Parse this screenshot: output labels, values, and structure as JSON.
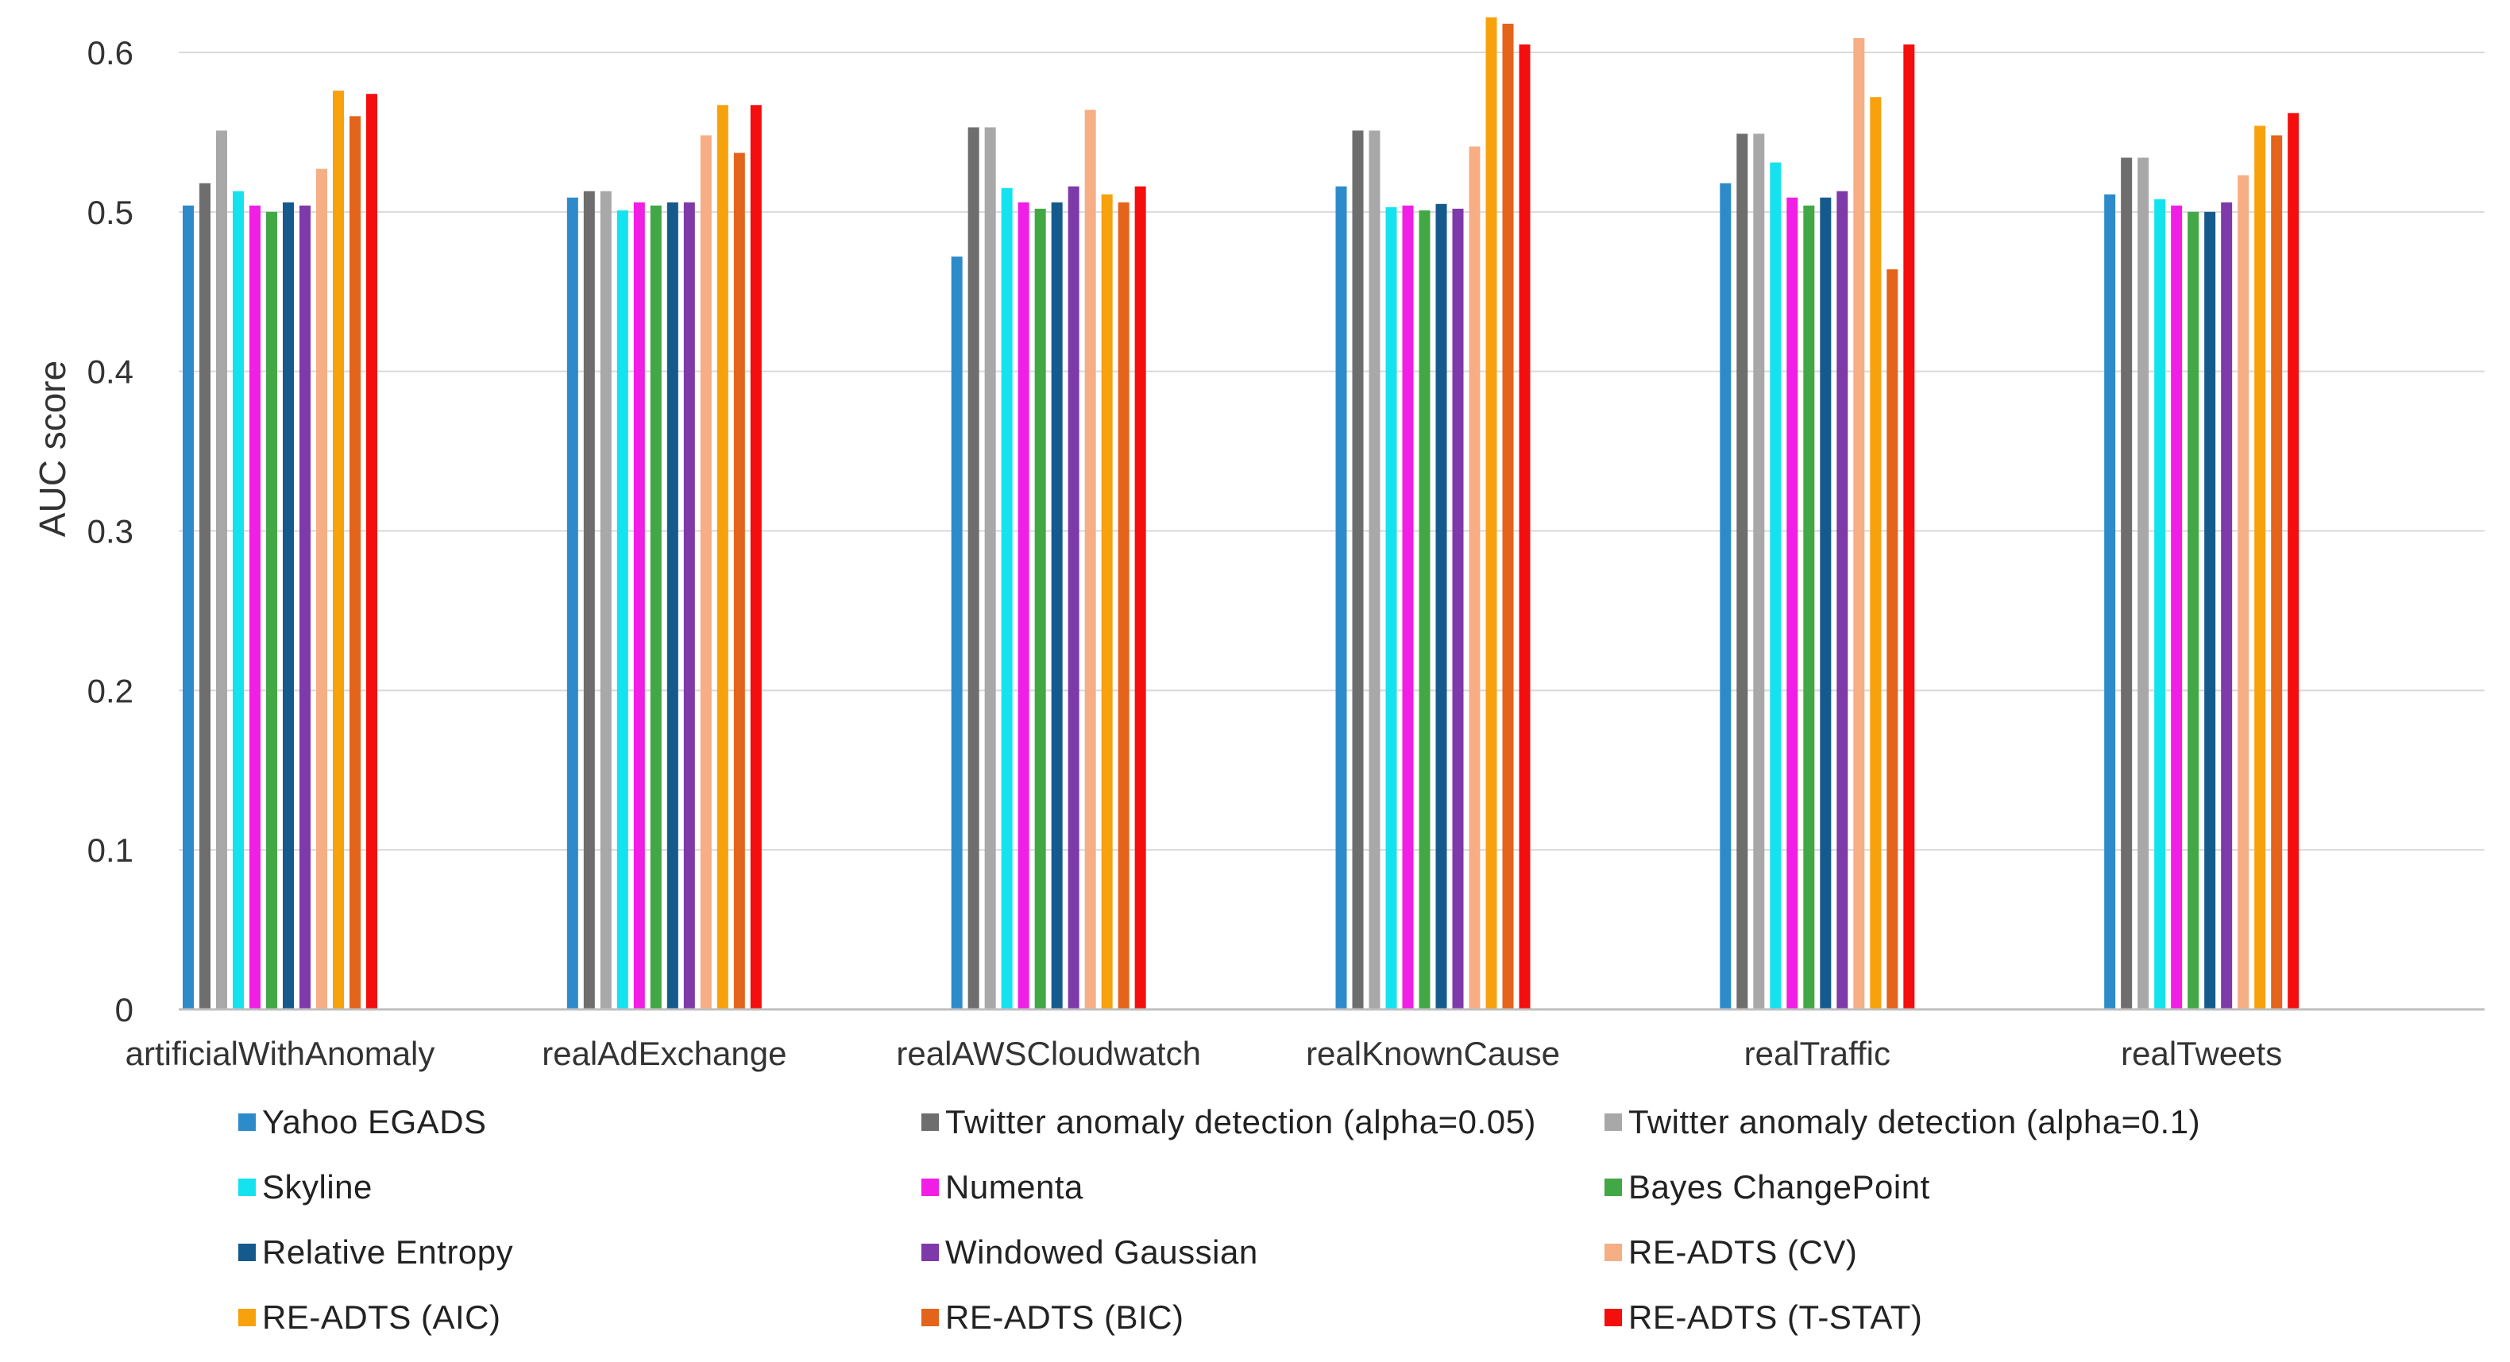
{
  "chart_data": {
    "type": "bar",
    "title": "",
    "xlabel": "",
    "ylabel": "AUC score",
    "ylim": [
      0,
      0.6
    ],
    "yticks": [
      "0",
      "0.1",
      "0.2",
      "0.3",
      "0.4",
      "0.5",
      "0.6"
    ],
    "ytick_values": [
      0,
      0.1,
      0.2,
      0.3,
      0.4,
      0.5,
      0.6
    ],
    "grid": true,
    "legend_position": "bottom",
    "categories": [
      "artificialWithAnomaly",
      "realAdExchange",
      "realAWSCloudwatch",
      "realKnownCause",
      "realTraffic",
      "realTweets"
    ],
    "series": [
      {
        "name": "Yahoo EGADS",
        "color": "#2E8BC9",
        "values": [
          0.504,
          0.509,
          0.472,
          0.516,
          0.518,
          0.511
        ]
      },
      {
        "name": "Twitter anomaly detection (alpha=0.05)",
        "color": "#6E6E6E",
        "values": [
          0.518,
          0.513,
          0.553,
          0.551,
          0.549,
          0.534
        ]
      },
      {
        "name": "Twitter anomaly detection (alpha=0.1)",
        "color": "#A8A8A8",
        "values": [
          0.551,
          0.513,
          0.553,
          0.551,
          0.549,
          0.534
        ]
      },
      {
        "name": "Skyline",
        "color": "#14E3EF",
        "values": [
          0.513,
          0.501,
          0.515,
          0.503,
          0.531,
          0.508
        ]
      },
      {
        "name": "Numenta",
        "color": "#F11EE6",
        "values": [
          0.504,
          0.506,
          0.506,
          0.504,
          0.509,
          0.504
        ]
      },
      {
        "name": "Bayes ChangePoint",
        "color": "#41A845",
        "values": [
          0.5,
          0.504,
          0.502,
          0.501,
          0.504,
          0.5
        ]
      },
      {
        "name": "Relative Entropy",
        "color": "#155A8C",
        "values": [
          0.506,
          0.506,
          0.506,
          0.505,
          0.509,
          0.5
        ]
      },
      {
        "name": "Windowed Gaussian",
        "color": "#7E3AA8",
        "values": [
          0.504,
          0.506,
          0.516,
          0.502,
          0.513,
          0.506
        ]
      },
      {
        "name": "RE-ADTS (CV)",
        "color": "#F6AE85",
        "values": [
          0.527,
          0.548,
          0.564,
          0.541,
          0.609,
          0.523
        ]
      },
      {
        "name": "RE-ADTS (AIC)",
        "color": "#F7A10D",
        "values": [
          0.576,
          0.567,
          0.511,
          0.622,
          0.572,
          0.554
        ]
      },
      {
        "name": "RE-ADTS (BIC)",
        "color": "#E3641A",
        "values": [
          0.56,
          0.537,
          0.506,
          0.618,
          0.464,
          0.548
        ]
      },
      {
        "name": "RE-ADTS (T-STAT)",
        "color": "#F40E0E",
        "values": [
          0.574,
          0.567,
          0.516,
          0.605,
          0.605,
          0.562
        ]
      }
    ]
  }
}
